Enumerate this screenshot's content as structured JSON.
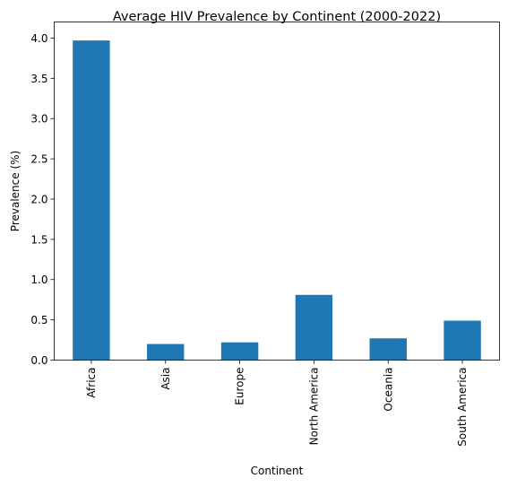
{
  "chart_data": {
    "type": "bar",
    "title": "Average HIV Prevalence by Continent (2000-2022)",
    "xlabel": "Continent",
    "ylabel": "Prevalence (%)",
    "categories": [
      "Africa",
      "Asia",
      "Europe",
      "North America",
      "Oceania",
      "South America"
    ],
    "values": [
      3.97,
      0.2,
      0.22,
      0.81,
      0.27,
      0.49
    ],
    "ylim": [
      0,
      4.2
    ],
    "yticks": [
      "0.0",
      "0.5",
      "1.0",
      "1.5",
      "2.0",
      "2.5",
      "3.0",
      "3.5",
      "4.0"
    ],
    "bar_color": "#1f77b4",
    "grid": false,
    "legend": "none"
  }
}
